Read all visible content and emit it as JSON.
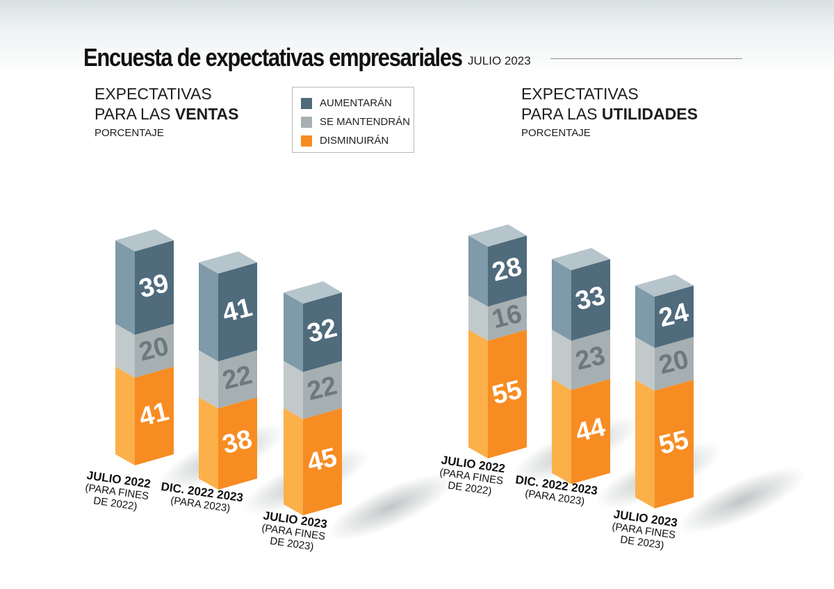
{
  "header": {
    "title": "Encuesta de expectativas empresariales",
    "date": "JULIO 2023"
  },
  "legend": [
    {
      "label": "AUMENTARÁN",
      "color": "#4f6b7c"
    },
    {
      "label": "SE MANTENDRÁN",
      "color": "#a6afb1"
    },
    {
      "label": "DISMINUIRÁN",
      "color": "#f78c22"
    }
  ],
  "panels": [
    {
      "line1": "EXPECTATIVAS",
      "line2_prefix": "PARA LAS ",
      "line2_bold": "VENTAS",
      "unit": "PORCENTAJE"
    },
    {
      "line1": "EXPECTATIVAS",
      "line2_prefix": "PARA LAS ",
      "line2_bold": "UTILIDADES",
      "unit": "PORCENTAJE"
    }
  ],
  "chart_data": [
    {
      "type": "bar",
      "stacked": true,
      "title": "EXPECTATIVAS PARA LAS VENTAS",
      "unit": "PORCENTAJE",
      "categories": [
        {
          "line1": "JULIO 2022",
          "line2": "(PARA FINES",
          "line3": "DE 2022)"
        },
        {
          "line1": "DIC. 2022 2023",
          "line2": "(PARA 2023)",
          "line3": ""
        },
        {
          "line1": "JULIO 2023",
          "line2": "(PARA FINES",
          "line3": "DE 2023)"
        }
      ],
      "series": [
        {
          "name": "DISMINUIRÁN",
          "values": [
            41,
            38,
            45
          ]
        },
        {
          "name": "SE MANTENDRÁN",
          "values": [
            20,
            22,
            22
          ]
        },
        {
          "name": "AUMENTARÁN",
          "values": [
            39,
            41,
            32
          ]
        }
      ]
    },
    {
      "type": "bar",
      "stacked": true,
      "title": "EXPECTATIVAS PARA LAS UTILIDADES",
      "unit": "PORCENTAJE",
      "categories": [
        {
          "line1": "JULIO 2022",
          "line2": "(PARA FINES",
          "line3": "DE 2022)"
        },
        {
          "line1": "DIC. 2022 2023",
          "line2": "(PARA 2023)",
          "line3": ""
        },
        {
          "line1": "JULIO 2023",
          "line2": "(PARA FINES",
          "line3": "DE 2023)"
        }
      ],
      "series": [
        {
          "name": "DISMINUIRÁN",
          "values": [
            55,
            44,
            55
          ]
        },
        {
          "name": "SE MANTENDRÁN",
          "values": [
            16,
            23,
            20
          ]
        },
        {
          "name": "AUMENTARÁN",
          "values": [
            28,
            33,
            24
          ]
        }
      ]
    }
  ]
}
